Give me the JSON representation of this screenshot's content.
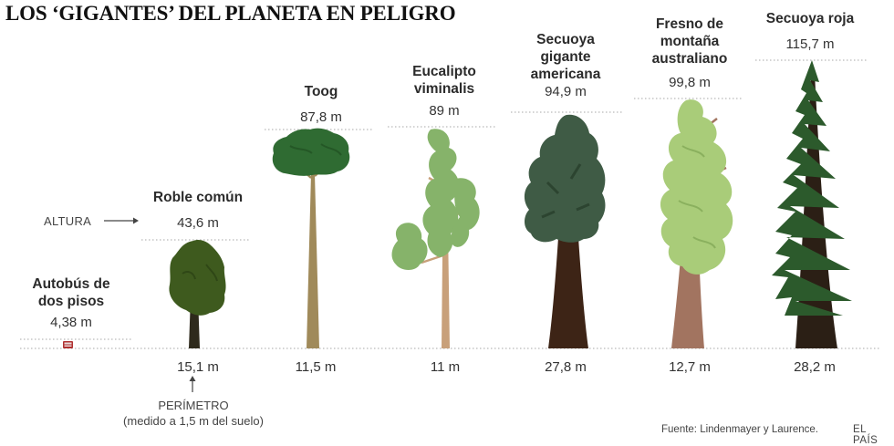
{
  "title": "LOS ‘GIGANTES’ DEL PLANETA EN PELIGRO",
  "legend": {
    "height_label": "ALTURA",
    "perimeter_label": "PERÍMETRO",
    "perimeter_note": "(medido a 1,5 m del suelo)"
  },
  "items": [
    {
      "name_lines": [
        "Autobús de",
        "dos pisos"
      ],
      "height": "4,38 m",
      "perimeter": ""
    },
    {
      "name_lines": [
        "Roble común"
      ],
      "height": "43,6 m",
      "perimeter": "15,1 m"
    },
    {
      "name_lines": [
        "Toog"
      ],
      "height": "87,8 m",
      "perimeter": "11,5 m"
    },
    {
      "name_lines": [
        "Eucalipto",
        "viminalis"
      ],
      "height": "89 m",
      "perimeter": "11 m"
    },
    {
      "name_lines": [
        "Secuoya",
        "gigante",
        "americana"
      ],
      "height": "94,9 m",
      "perimeter": "27,8 m"
    },
    {
      "name_lines": [
        "Fresno de",
        "montaña",
        "australiano"
      ],
      "height": "99,8 m",
      "perimeter": "12,7 m"
    },
    {
      "name_lines": [
        "Secuoya roja"
      ],
      "height": "115,7 m",
      "perimeter": "28,2 m"
    }
  ],
  "footer": {
    "source": "Fuente: Lindenmayer y Laurence.",
    "brand": "EL PAÍS"
  },
  "colors": {
    "oak_canopy": "#3e5a1e",
    "toog_canopy": "#2f6b32",
    "eucalyptus_canopy": "#86b36a",
    "sequoia_canopy": "#3f5b45",
    "ash_canopy": "#a9cc79",
    "redwood_canopy": "#2c5a2c",
    "bus": "#b03030"
  }
}
